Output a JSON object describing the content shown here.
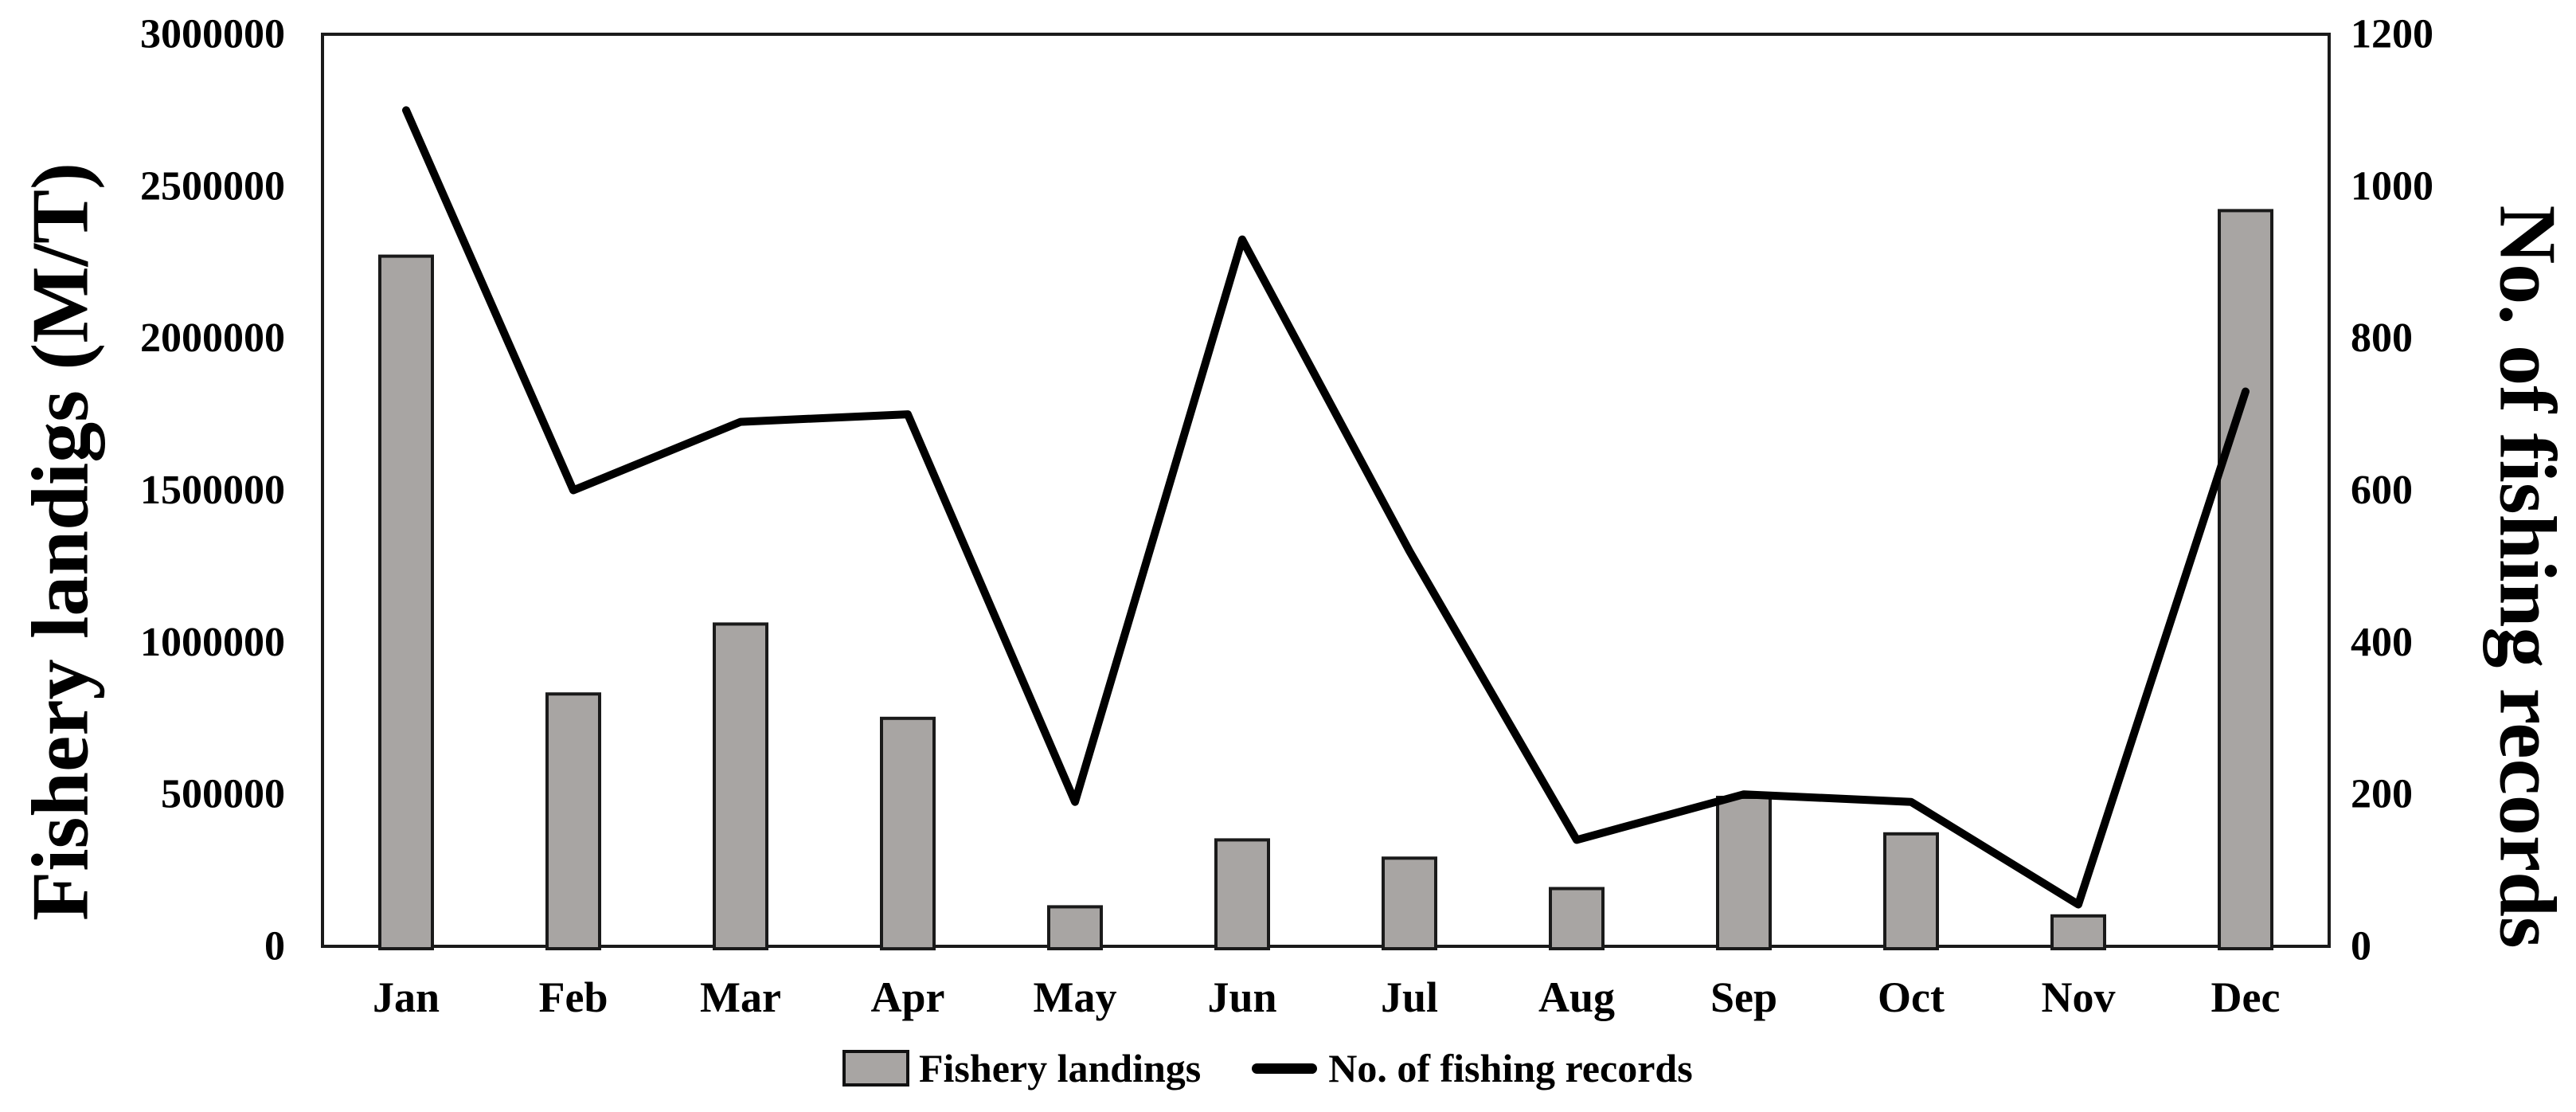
{
  "figure": {
    "background": "#ffffff",
    "ink_color": "#000000",
    "axis_color": "#1a1a1a"
  },
  "chart_data": {
    "type": "combo-bar-line",
    "categories": [
      "Jan",
      "Feb",
      "Mar",
      "Apr",
      "May",
      "Jun",
      "Jul",
      "Aug",
      "Sep",
      "Oct",
      "Nov",
      "Dec"
    ],
    "series": [
      {
        "name": "Fishery landings",
        "type": "bar",
        "y_axis": "left",
        "color": "#a8a5a3",
        "border_color": "#1a1a1a",
        "values": [
          2270000,
          830000,
          1060000,
          750000,
          130000,
          350000,
          290000,
          190000,
          490000,
          370000,
          100000,
          2420000
        ]
      },
      {
        "name": "No. of fishing records",
        "type": "line",
        "y_axis": "right",
        "color": "#000000",
        "values": [
          1100,
          600,
          690,
          700,
          190,
          930,
          520,
          140,
          200,
          190,
          55,
          730
        ]
      }
    ],
    "left_axis": {
      "title": "Fishery landigs (M/T)",
      "min": 0,
      "max": 3000000,
      "tick_step": 500000,
      "tick_labels": [
        "0",
        "500000",
        "1000000",
        "1500000",
        "2000000",
        "2500000",
        "3000000"
      ]
    },
    "right_axis": {
      "title": "No. of fishing records",
      "min": 0,
      "max": 1200,
      "tick_step": 200,
      "tick_labels": [
        "0",
        "200",
        "400",
        "600",
        "800",
        "1000",
        "1200"
      ]
    },
    "grid": false,
    "plot_border": true,
    "legend_position": "bottom-center"
  }
}
